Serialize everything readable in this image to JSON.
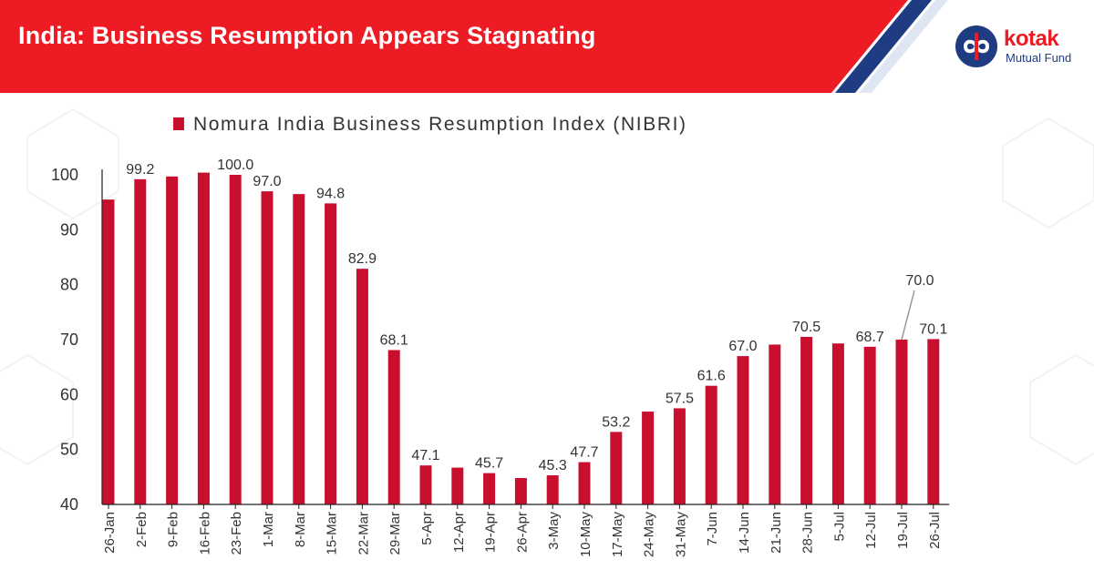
{
  "header": {
    "title": "India: Business Resumption Appears Stagnating",
    "banner_color": "#ed1c24"
  },
  "brand": {
    "name": "kotak",
    "subtitle": "Mutual Fund",
    "primary_color": "#ed1c24",
    "secondary_color": "#1f3b82",
    "icon": "kotak-infinity-logo-icon"
  },
  "chart_data": {
    "type": "bar",
    "title": "",
    "legend": {
      "label": "Nomura India Business Resumption Index (NIBRI)",
      "position": "top"
    },
    "bar_color": "#c8102e",
    "xlabel": "",
    "ylabel": "",
    "ylim": [
      40,
      100
    ],
    "yticks": [
      40,
      50,
      60,
      70,
      80,
      90,
      100
    ],
    "categories": [
      "26-Jan",
      "2-Feb",
      "9-Feb",
      "16-Feb",
      "23-Feb",
      "1-Mar",
      "8-Mar",
      "15-Mar",
      "22-Mar",
      "29-Mar",
      "5-Apr",
      "12-Apr",
      "19-Apr",
      "26-Apr",
      "3-May",
      "10-May",
      "17-May",
      "24-May",
      "31-May",
      "7-Jun",
      "14-Jun",
      "21-Jun",
      "28-Jun",
      "5-Jul",
      "12-Jul",
      "19-Jul",
      "26-Jul"
    ],
    "values": [
      95.5,
      99.2,
      99.7,
      100.4,
      100.0,
      97.0,
      96.5,
      94.8,
      82.9,
      68.1,
      47.1,
      46.7,
      45.7,
      44.8,
      45.3,
      47.7,
      53.2,
      56.9,
      57.5,
      61.6,
      67.0,
      69.1,
      70.5,
      69.3,
      68.7,
      70.0,
      70.1
    ],
    "labels": [
      {
        "index": 1,
        "text": "99.2"
      },
      {
        "index": 4,
        "text": "100.0"
      },
      {
        "index": 5,
        "text": "97.0"
      },
      {
        "index": 7,
        "text": "94.8"
      },
      {
        "index": 8,
        "text": "82.9"
      },
      {
        "index": 9,
        "text": "68.1"
      },
      {
        "index": 10,
        "text": "47.1"
      },
      {
        "index": 12,
        "text": "45.7"
      },
      {
        "index": 14,
        "text": "45.3"
      },
      {
        "index": 15,
        "text": "47.7"
      },
      {
        "index": 16,
        "text": "53.2"
      },
      {
        "index": 18,
        "text": "57.5"
      },
      {
        "index": 19,
        "text": "61.6"
      },
      {
        "index": 20,
        "text": "67.0"
      },
      {
        "index": 22,
        "text": "70.5"
      },
      {
        "index": 24,
        "text": "68.7"
      },
      {
        "index": 25,
        "text": "70.0",
        "callout": true
      },
      {
        "index": 26,
        "text": "70.1"
      }
    ]
  }
}
